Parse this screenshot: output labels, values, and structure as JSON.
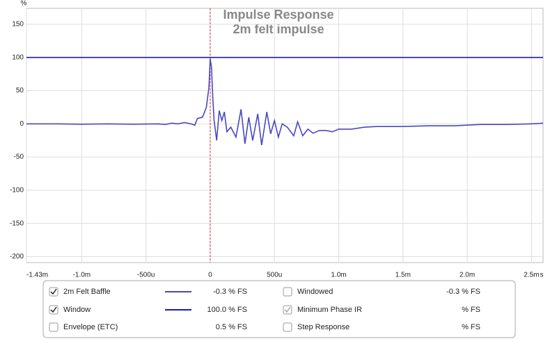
{
  "chart_data": {
    "type": "line",
    "title": "Impulse Response",
    "subtitle": "2m felt impulse",
    "x_unit": "s",
    "y_unit": "%",
    "xlim": [
      -1.43,
      2.59
    ],
    "ylim": [
      -209,
      174
    ],
    "xticks": [
      {
        "value": -1.43,
        "label": "-1.43m"
      },
      {
        "value": -1.0,
        "label": "-1.0m"
      },
      {
        "value": -0.5,
        "label": "-500u"
      },
      0,
      {
        "value": 0.5,
        "label": "500u"
      },
      {
        "value": 1.0,
        "label": "1.0m"
      },
      {
        "value": 1.5,
        "label": "1.5m"
      },
      {
        "value": 2.0,
        "label": "2.0m"
      },
      {
        "value": 2.5,
        "label": "2.5m"
      }
    ],
    "yticks": [
      -200,
      -150,
      -100,
      -50,
      0,
      50,
      100,
      150
    ],
    "grid": true,
    "marker_x": 0,
    "marker_color": "#d03030",
    "series": [
      {
        "name": "2m Felt Baffle",
        "color": "#4848c0",
        "reading": "-0.3 % FS",
        "checked": true,
        "x": [
          -1.43,
          -1.2,
          -1.0,
          -0.8,
          -0.6,
          -0.4,
          -0.35,
          -0.3,
          -0.25,
          -0.2,
          -0.15,
          -0.12,
          -0.1,
          -0.06,
          -0.03,
          -0.01,
          0,
          0.01,
          0.02,
          0.03,
          0.05,
          0.07,
          0.09,
          0.11,
          0.13,
          0.16,
          0.2,
          0.24,
          0.27,
          0.3,
          0.33,
          0.37,
          0.4,
          0.44,
          0.47,
          0.5,
          0.53,
          0.56,
          0.6,
          0.65,
          0.68,
          0.72,
          0.76,
          0.8,
          0.85,
          0.9,
          0.95,
          1.0,
          1.1,
          1.2,
          1.3,
          1.5,
          1.7,
          1.9,
          2.1,
          2.3,
          2.5,
          2.59
        ],
        "values": [
          0,
          0,
          -0.5,
          0,
          -0.5,
          0,
          -1,
          1,
          0,
          2,
          0,
          -2,
          8,
          10,
          25,
          55,
          98,
          85,
          40,
          5,
          -25,
          20,
          5,
          18,
          -12,
          -5,
          -20,
          22,
          -30,
          10,
          -25,
          15,
          -32,
          18,
          -15,
          5,
          -20,
          0,
          -5,
          -18,
          3,
          -18,
          -8,
          -14,
          -10,
          -10,
          -12,
          -8,
          -8,
          -5,
          -4,
          -4,
          -3,
          -3,
          -1,
          -1,
          0,
          1
        ]
      },
      {
        "name": "Window",
        "color": "#1a1ab0",
        "reading": "100.0 % FS",
        "checked": true,
        "x": [
          -1.43,
          2.59
        ],
        "values": [
          100,
          100
        ]
      }
    ],
    "panel_items": [
      {
        "name": "Envelope (ETC)",
        "reading": "0.5 % FS",
        "checked": false,
        "enabled": true,
        "color": "#222222"
      },
      {
        "name": "Windowed",
        "reading": "-0.3 % FS",
        "checked": false,
        "enabled": true,
        "color": "#4848c0"
      },
      {
        "name": "Minimum Phase IR",
        "reading": "% FS",
        "checked": true,
        "enabled": false,
        "color": "#999999"
      },
      {
        "name": "Step Response",
        "reading": "% FS",
        "checked": false,
        "enabled": true,
        "color": "#222222"
      }
    ]
  }
}
